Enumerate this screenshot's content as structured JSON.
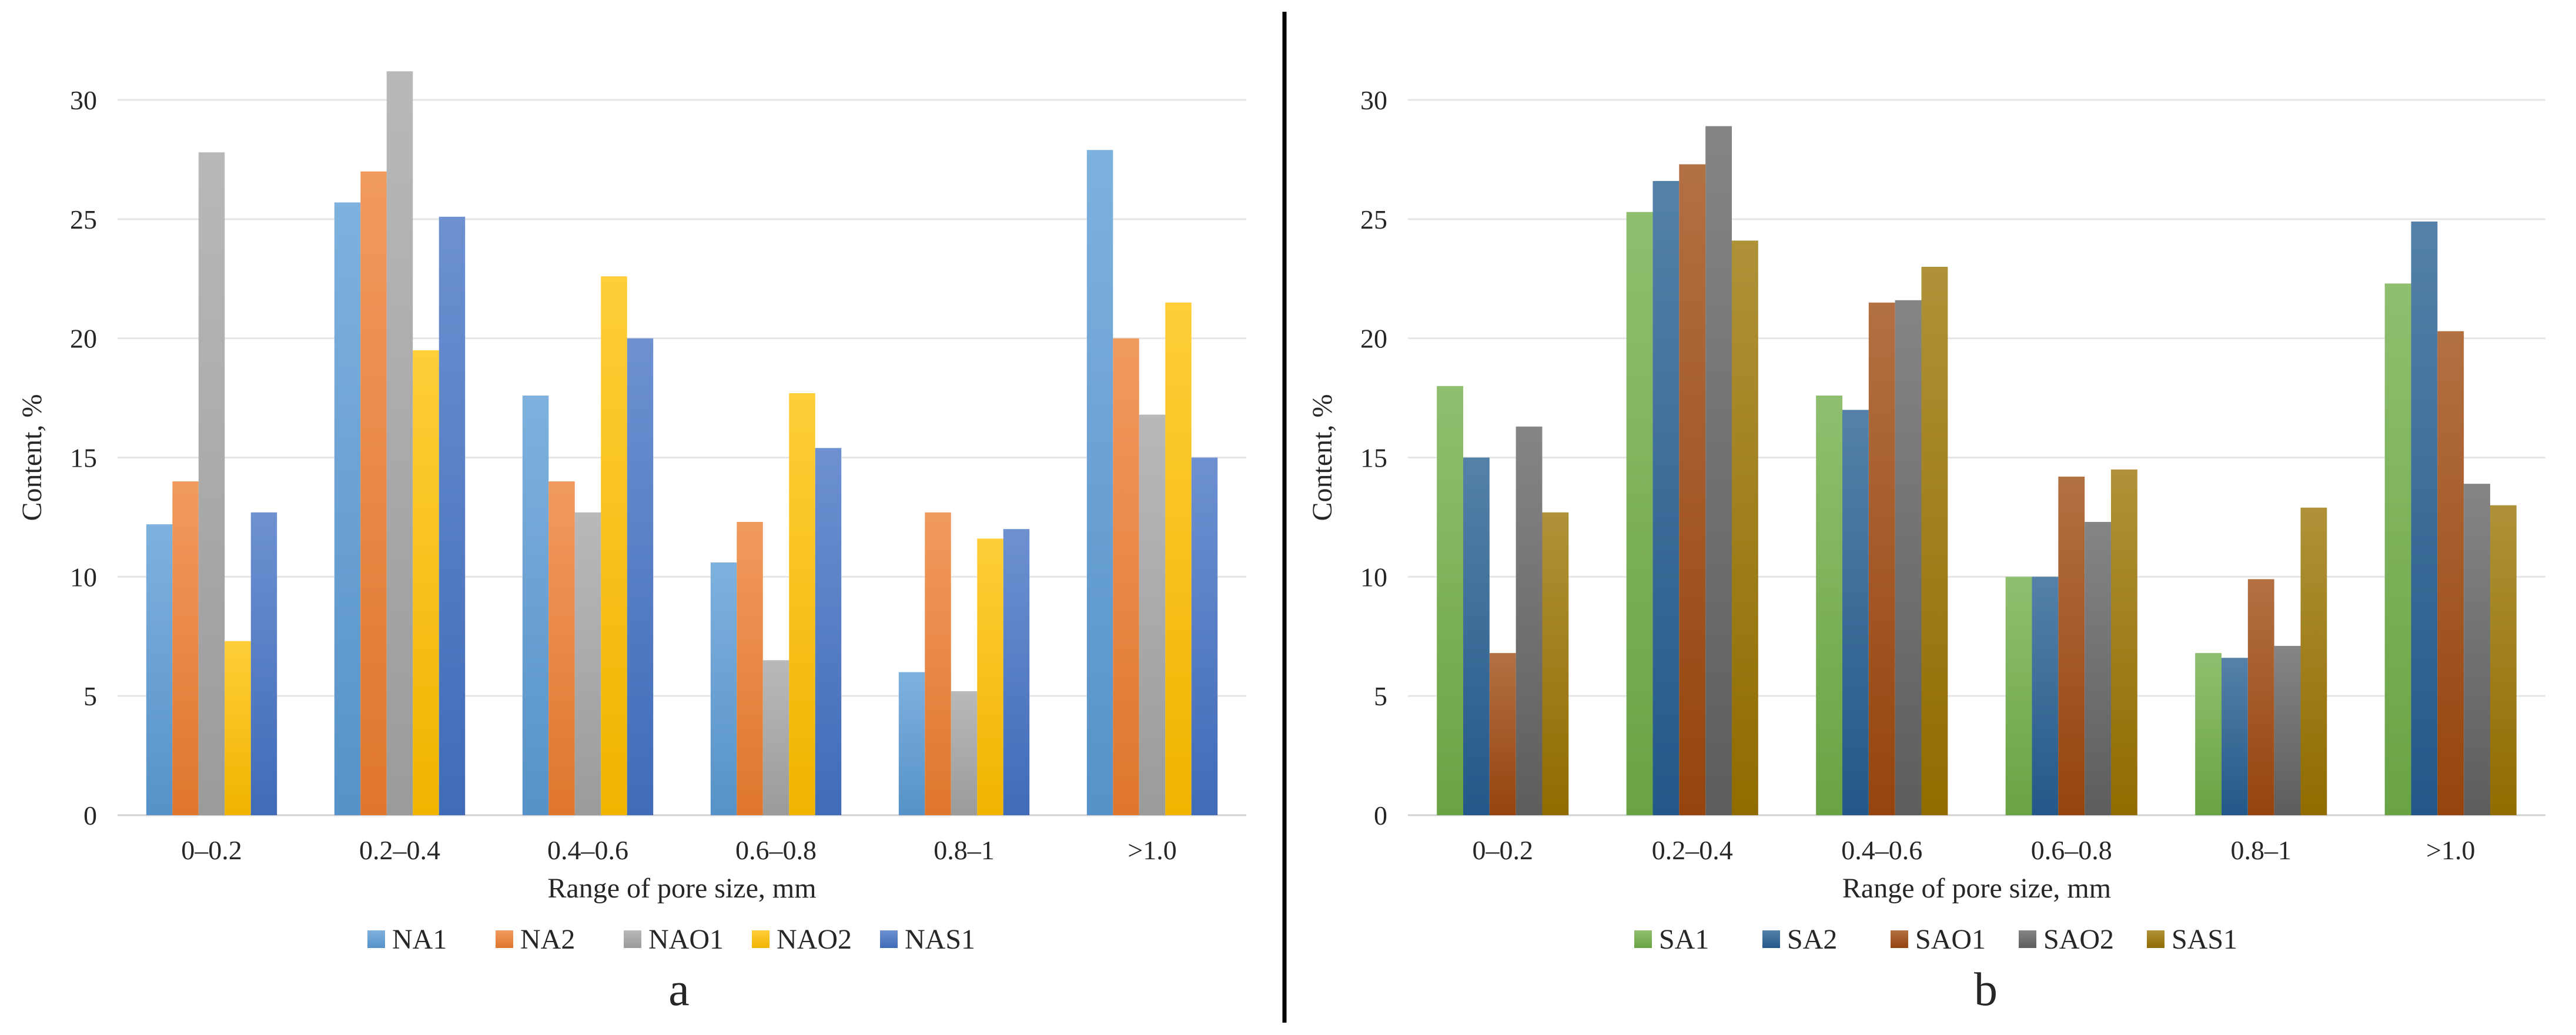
{
  "chart_data": [
    {
      "type": "bar",
      "panel_label": "a",
      "categories": [
        "0–0.2",
        "0.2–0.4",
        "0.4–0.6",
        "0.6–0.8",
        "0.8–1",
        ">1.0"
      ],
      "series": [
        {
          "name": "NA1",
          "color": "#5B9BD5",
          "values": [
            12.2,
            25.7,
            17.6,
            10.6,
            6.0,
            27.9
          ]
        },
        {
          "name": "NA2",
          "color": "#ED7D31",
          "values": [
            14.0,
            27.0,
            14.0,
            12.3,
            12.7,
            20.0
          ]
        },
        {
          "name": "NAO1",
          "color": "#A5A5A5",
          "values": [
            27.8,
            31.2,
            12.7,
            6.5,
            5.2,
            16.8
          ]
        },
        {
          "name": "NAO2",
          "color": "#FFC000",
          "values": [
            7.3,
            19.5,
            22.6,
            17.7,
            11.6,
            21.5
          ]
        },
        {
          "name": "NAS1",
          "color": "#4472C4",
          "values": [
            12.7,
            25.1,
            20.0,
            15.4,
            12.0,
            15.0
          ]
        }
      ],
      "xlabel": "Range of pore size, mm",
      "ylabel": "Content, %",
      "ylim": [
        0,
        30
      ],
      "yticks": [
        "0",
        "5",
        "10",
        "15",
        "20",
        "25",
        "30"
      ],
      "grid": true,
      "legend_position": "bottom"
    },
    {
      "type": "bar",
      "panel_label": "b",
      "categories": [
        "0–0.2",
        "0.2–0.4",
        "0.4–0.6",
        "0.6–0.8",
        "0.8–1",
        ">1.0"
      ],
      "series": [
        {
          "name": "SA1",
          "color": "#70AD47",
          "values": [
            18.0,
            25.3,
            17.6,
            10.0,
            6.8,
            22.3
          ]
        },
        {
          "name": "SA2",
          "color": "#255E91",
          "values": [
            15.0,
            26.6,
            17.0,
            10.0,
            6.6,
            24.9
          ]
        },
        {
          "name": "SAO1",
          "color": "#9E480E",
          "values": [
            6.8,
            27.3,
            21.5,
            14.2,
            9.9,
            20.3
          ]
        },
        {
          "name": "SAO2",
          "color": "#636363",
          "values": [
            16.3,
            28.9,
            21.6,
            12.3,
            7.1,
            13.9
          ]
        },
        {
          "name": "SAS1",
          "color": "#997300",
          "values": [
            12.7,
            24.1,
            23.0,
            14.5,
            12.9,
            13.0
          ]
        }
      ],
      "xlabel": "Range of pore size, mm",
      "ylabel": "Content, %",
      "ylim": [
        0,
        30
      ],
      "yticks": [
        "0",
        "5",
        "10",
        "15",
        "20",
        "25",
        "30"
      ],
      "grid": true,
      "legend_position": "bottom"
    }
  ]
}
